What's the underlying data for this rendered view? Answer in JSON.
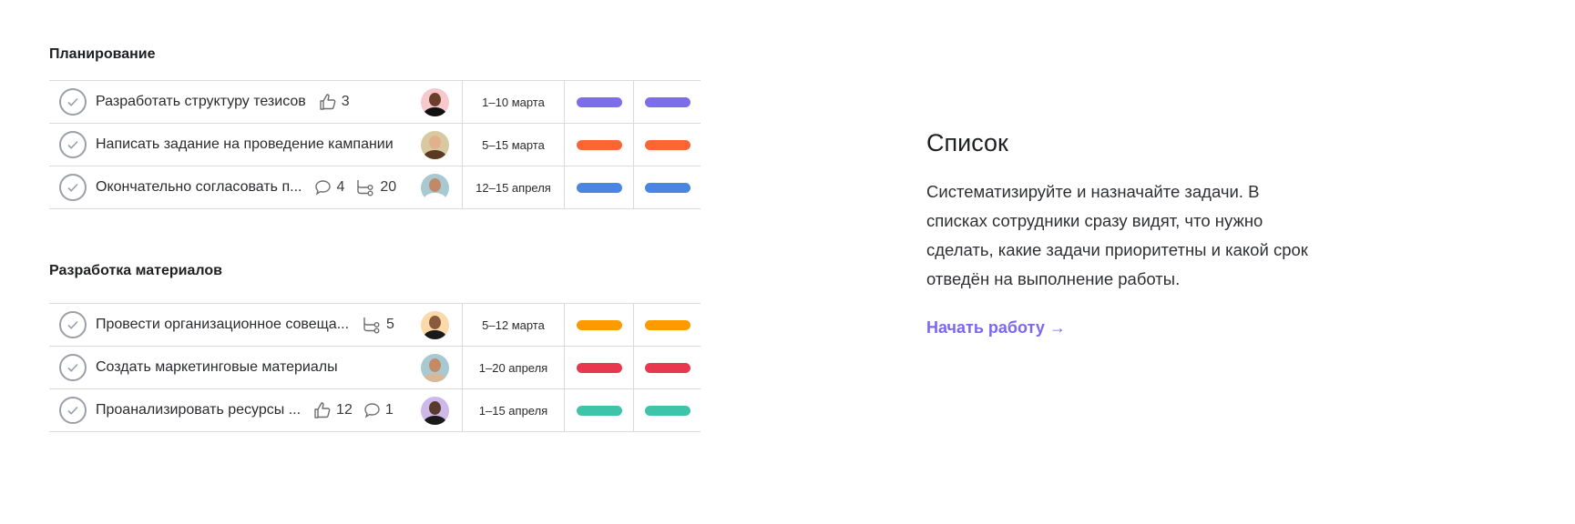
{
  "sections": [
    {
      "title": "Планирование",
      "rows": [
        {
          "name": "Разработать структуру тезисов",
          "likes": "3",
          "date": "1–10 марта",
          "color": "#7b6ee8",
          "avatar_bg": "#f7c9cc",
          "skin": "#6b3f2c",
          "shirt": "#111111"
        },
        {
          "name": "Написать задание на проведение кампании",
          "date": "5–15 марта",
          "color": "#fd6534",
          "avatar_bg": "#d9c9a0",
          "skin": "#e3b08d",
          "shirt": "#5b3a22"
        },
        {
          "name": "Окончательно согласовать п...",
          "comments": "4",
          "subtasks": "20",
          "date": "12–15 апреля",
          "color": "#4a86e0",
          "avatar_bg": "#a8c8d2",
          "skin": "#c08a68",
          "shirt": "#ffffff"
        }
      ]
    },
    {
      "title": "Разработка материалов",
      "rows": [
        {
          "name": "Провести организационное совеща...",
          "subtasks": "5",
          "date": "5–12 марта",
          "color": "#fd9a00",
          "avatar_bg": "#fbd9a8",
          "skin": "#8a5a3c",
          "shirt": "#1a1a1a"
        },
        {
          "name": "Создать маркетинговые материалы",
          "date": "1–20 апреля",
          "color": "#e8384f",
          "avatar_bg": "#a8c8d2",
          "skin": "#c48a66",
          "shirt": "#d9b89a"
        },
        {
          "name": "Проанализировать ресурсы ...",
          "likes": "12",
          "comments": "1",
          "date": "1–15 апреля",
          "color": "#3ec4a8",
          "avatar_bg": "#cdb8ea",
          "skin": "#5a3a2a",
          "shirt": "#1a1a1a"
        }
      ]
    }
  ],
  "feature": {
    "title": "Список",
    "description": "Систематизируйте и назначайте задачи. В списках сотрудники сразу видят, что нужно сделать, какие задачи приоритетны и какой срок отведён на выполнение работы.",
    "cta": "Начать работу →"
  },
  "icons": {
    "check": "check-circle-icon",
    "like": "thumbs-up-icon",
    "comment": "comment-icon",
    "subtask": "subtask-icon"
  }
}
